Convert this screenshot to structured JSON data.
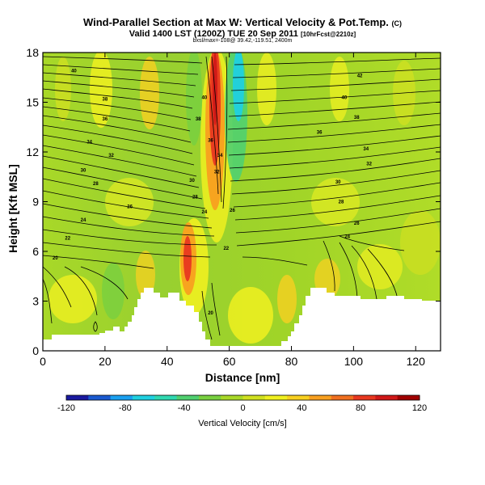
{
  "header": {
    "title": "Wind-Parallel Section at Max W: Vertical Velocity & Pot.Temp.",
    "copyright": "(C)",
    "valid": "Valid 1400 LST (1200Z) TUE 20 Sep 2011",
    "forecast": "[10hrFcst@2210z]",
    "subline": "bxsl/max=-108@ 39.42,-119.51, 2400m"
  },
  "chart_data": {
    "type": "heatmap",
    "xlabel": "Distance [nm]",
    "ylabel": "Height [Kft MSL]",
    "xlim": [
      0,
      128
    ],
    "ylim": [
      0,
      18
    ],
    "xticks": [
      0,
      20,
      40,
      60,
      80,
      100,
      120
    ],
    "yticks": [
      0,
      3,
      6,
      9,
      12,
      15,
      18
    ],
    "colorbar": {
      "label": "Vertical Velocity [cm/s]",
      "range": [
        -120,
        120
      ],
      "ticks": [
        -120,
        -80,
        -40,
        0,
        40,
        80,
        120
      ],
      "colors": [
        "#1a1aa0",
        "#1a5ad0",
        "#1aa0f0",
        "#20d0e0",
        "#30d8b0",
        "#50d070",
        "#78d040",
        "#a8d828",
        "#d0e020",
        "#f0f020",
        "#f8d020",
        "#f8a020",
        "#f07020",
        "#e83820",
        "#d01818",
        "#a00000"
      ]
    },
    "contour_labels": [
      {
        "x": 10,
        "y": 16.9,
        "text": "40"
      },
      {
        "x": 20,
        "y": 15.2,
        "text": "38"
      },
      {
        "x": 20,
        "y": 14.0,
        "text": "36"
      },
      {
        "x": 15,
        "y": 12.6,
        "text": "34"
      },
      {
        "x": 22,
        "y": 11.8,
        "text": "32"
      },
      {
        "x": 13,
        "y": 10.9,
        "text": "30"
      },
      {
        "x": 17,
        "y": 10.1,
        "text": "28"
      },
      {
        "x": 28,
        "y": 8.7,
        "text": "26"
      },
      {
        "x": 13,
        "y": 7.9,
        "text": "24"
      },
      {
        "x": 8,
        "y": 6.8,
        "text": "22"
      },
      {
        "x": 4,
        "y": 5.6,
        "text": "20"
      },
      {
        "x": 52,
        "y": 15.3,
        "text": "40"
      },
      {
        "x": 50,
        "y": 14.0,
        "text": "38"
      },
      {
        "x": 54,
        "y": 12.7,
        "text": "36"
      },
      {
        "x": 57,
        "y": 11.8,
        "text": "34"
      },
      {
        "x": 56,
        "y": 10.8,
        "text": "32"
      },
      {
        "x": 48,
        "y": 10.3,
        "text": "30"
      },
      {
        "x": 49,
        "y": 9.3,
        "text": "28"
      },
      {
        "x": 52,
        "y": 8.4,
        "text": "24"
      },
      {
        "x": 61,
        "y": 8.5,
        "text": "26"
      },
      {
        "x": 59,
        "y": 6.2,
        "text": "22"
      },
      {
        "x": 54,
        "y": 2.3,
        "text": "20"
      },
      {
        "x": 102,
        "y": 16.6,
        "text": "42"
      },
      {
        "x": 97,
        "y": 15.3,
        "text": "40"
      },
      {
        "x": 101,
        "y": 14.1,
        "text": "38"
      },
      {
        "x": 89,
        "y": 13.2,
        "text": "36"
      },
      {
        "x": 104,
        "y": 12.2,
        "text": "34"
      },
      {
        "x": 105,
        "y": 11.3,
        "text": "32"
      },
      {
        "x": 95,
        "y": 10.2,
        "text": "30"
      },
      {
        "x": 96,
        "y": 9.0,
        "text": "28"
      },
      {
        "x": 101,
        "y": 7.7,
        "text": "26"
      },
      {
        "x": 98,
        "y": 6.9,
        "text": "24"
      }
    ]
  }
}
